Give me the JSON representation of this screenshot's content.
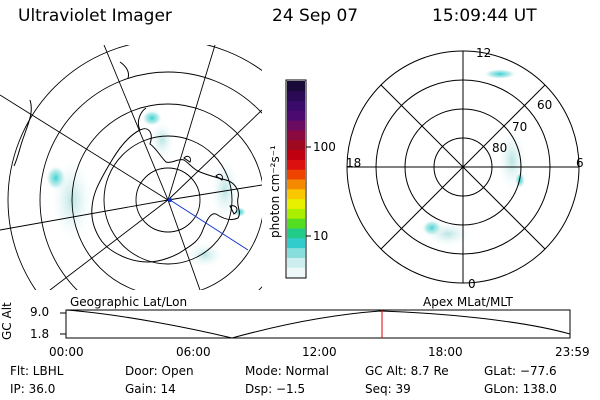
{
  "header": {
    "instrument": "Ultraviolet Imager",
    "date": "24 Sep 07",
    "time": "15:09:44 UT"
  },
  "colorbar": {
    "unit_label": "photon cm⁻²s⁻¹",
    "ticks": [
      "100",
      "10"
    ],
    "colors": [
      "#1a0a3a",
      "#2b0a55",
      "#3a0a6a",
      "#4a0a70",
      "#6a0a60",
      "#8a0a40",
      "#a00a20",
      "#c00010",
      "#dd1010",
      "#ee4400",
      "#f58a00",
      "#f9c800",
      "#e8f000",
      "#aaee00",
      "#55dd22",
      "#22cc88",
      "#33cccc",
      "#88dddd",
      "#cceeee",
      "#eef8f8"
    ]
  },
  "left_map": {
    "label": "Geographic Lat/Lon"
  },
  "right_map": {
    "label": "Apex MLat/MLT",
    "mlt_labels": {
      "top": "12",
      "left": "18",
      "right": "6",
      "bottom": "0"
    },
    "lat_labels": [
      "60",
      "70",
      "80"
    ]
  },
  "altitude_plot": {
    "ylabel": "GC Alt",
    "yticks": [
      "9.0",
      "1.8"
    ],
    "xticks": [
      "00:00",
      "06:00",
      "12:00",
      "18:00",
      "23:59"
    ],
    "marker_color": "#dd0000"
  },
  "info": {
    "flt": "Flt: LBHL",
    "door": "Door: Open",
    "mode": "Mode: Normal",
    "gcalt": "GC Alt: 8.7 Re",
    "glat": "GLat: −77.6",
    "ip": "IP: 36.0",
    "gain": "Gain: 14",
    "dsp": "Dsp:    −1.5",
    "seq": "Seq: 39",
    "glon": "GLon: 138.0"
  }
}
